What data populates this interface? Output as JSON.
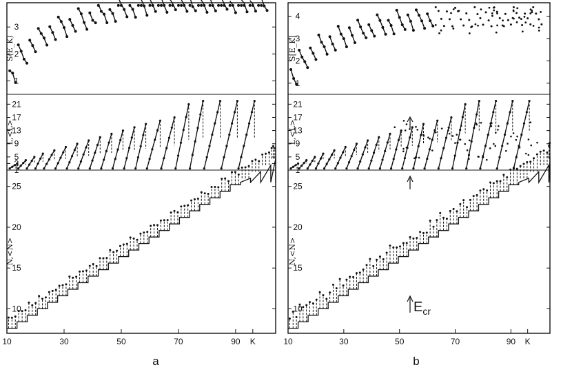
{
  "figure": {
    "panels": [
      {
        "label": "a",
        "x_tick_labels": [
          "10",
          "30",
          "50",
          "70",
          "90",
          "K"
        ],
        "y_labels": {
          "top": "S(E_K)",
          "middle": "L,<L>",
          "bottom": "N,<N>"
        }
      },
      {
        "label": "b",
        "x_tick_labels": [
          "10",
          "30",
          "50",
          "70",
          "90",
          "K"
        ],
        "y_labels": {
          "top": "S[E_K]",
          "middle": "L,<L>",
          "bottom": "N,<N>"
        },
        "annotation": "E",
        "annotation_sub": "cr"
      }
    ]
  },
  "chart_data": [
    {
      "panel": "a",
      "type": "scatter",
      "subplots": [
        {
          "name": "S(E_K)",
          "ylim": [
            0.5,
            3.9
          ],
          "yticks": [
            1,
            2,
            3
          ],
          "description_values": "S(E_K) rising sawtooth segments, approx 1 to 3.8"
        },
        {
          "name": "L,<L>",
          "ylim": [
            1,
            24
          ],
          "yticks": [
            1,
            3,
            5,
            9,
            13,
            17,
            21
          ]
        },
        {
          "name": "N,<N>",
          "ylim": [
            7,
            27
          ],
          "yticks": [
            10,
            15,
            20,
            25
          ]
        }
      ],
      "xlim": [
        10,
        104
      ],
      "x_ticks": [
        10,
        30,
        50,
        70,
        90,
        96
      ]
    },
    {
      "panel": "b",
      "type": "scatter",
      "subplots": [
        {
          "name": "S[E_K]",
          "ylim": [
            0.5,
            4.6
          ],
          "yticks": [
            1,
            2,
            3,
            4
          ]
        },
        {
          "name": "L,<L>",
          "ylim": [
            1,
            24
          ],
          "yticks": [
            1,
            5,
            9,
            13,
            17,
            21
          ]
        },
        {
          "name": "N,<N>",
          "ylim": [
            7,
            27
          ],
          "yticks": [
            10,
            15,
            20,
            25
          ]
        }
      ],
      "xlim": [
        10,
        104
      ],
      "x_ticks": [
        10,
        30,
        50,
        70,
        90,
        96
      ],
      "critical_x": 48
    }
  ]
}
